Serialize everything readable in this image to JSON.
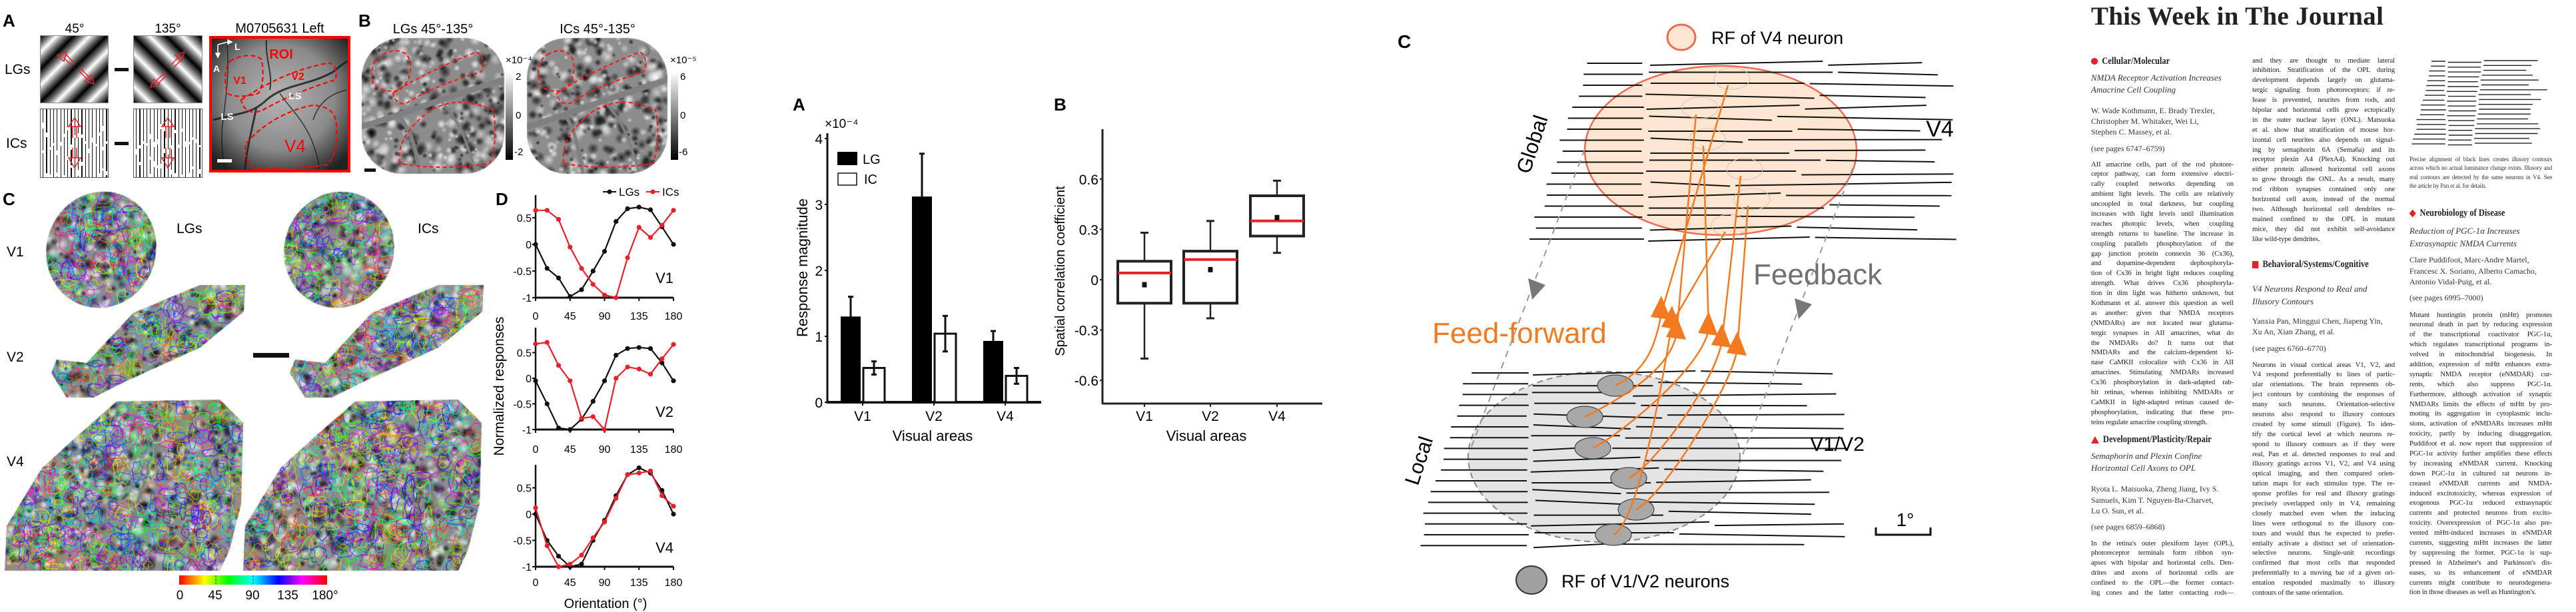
{
  "figure1": {
    "panel_a": {
      "label": "A",
      "col_45": "45°",
      "col_135": "135°",
      "image_title": "M0705631 Left",
      "row_lgs": "LGs",
      "row_ics": "ICs",
      "roi_labels": {
        "roi": "ROI",
        "v1": "V1",
        "v2": "V2",
        "ls_1": "LS",
        "ls_2": "LS",
        "v4": "V4",
        "lateral": "L",
        "anterior": "A"
      }
    },
    "panel_b": {
      "label": "B",
      "title_lgs": "LGs 45°-135°",
      "title_ics": "ICs 45°-135°",
      "cbar_lgs": {
        "exponent": "×10⁻⁴",
        "ticks": [
          "2",
          "0",
          "-2"
        ]
      },
      "cbar_ics": {
        "exponent": "×10⁻⁵",
        "ticks": [
          "6",
          "0",
          "-6"
        ]
      }
    },
    "panel_c": {
      "label": "C",
      "col_lgs": "LGs",
      "col_ics": "ICs",
      "rows": [
        "V1",
        "V2",
        "V4"
      ],
      "colorbar_ticks": [
        "0",
        "45",
        "90",
        "135",
        "180°"
      ]
    },
    "panel_d": {
      "label": "D",
      "ylabel": "Normalized responses",
      "xlabel": "Orientation (°)",
      "legend": [
        "LGs",
        "ICs"
      ],
      "colors": {
        "LGs": "#111111",
        "ICs": "#e8202a"
      }
    }
  },
  "chart_data": [
    {
      "type": "bar",
      "panel": "A",
      "categories": [
        "V1",
        "V2",
        "V4"
      ],
      "series": [
        {
          "name": "LG",
          "values": [
            1.3,
            3.12,
            0.93
          ],
          "error": [
            0.3,
            0.65,
            0.15
          ],
          "color": "#000000"
        },
        {
          "name": "IC",
          "values": [
            0.52,
            1.04,
            0.4
          ],
          "error": [
            0.1,
            0.27,
            0.12
          ],
          "color": "#ffffff"
        }
      ],
      "ylabel": "Response magnitude",
      "y_multiplier": "×10⁻⁴",
      "xlabel": "Visual areas",
      "ylim": [
        0,
        4
      ],
      "yticks": [
        "0",
        "1",
        "2",
        "3",
        "4"
      ],
      "legend": "top-left"
    },
    {
      "type": "box",
      "panel": "B",
      "categories": [
        "V1",
        "V2",
        "V4"
      ],
      "boxes": [
        {
          "whisker_low": -0.47,
          "q1": -0.14,
          "median": 0.04,
          "mean": -0.03,
          "q3": 0.11,
          "whisker_high": 0.28
        },
        {
          "whisker_low": -0.23,
          "q1": -0.14,
          "median": 0.12,
          "mean": 0.06,
          "q3": 0.17,
          "whisker_high": 0.35
        },
        {
          "whisker_low": 0.16,
          "q1": 0.26,
          "median": 0.35,
          "mean": 0.37,
          "q3": 0.5,
          "whisker_high": 0.59
        }
      ],
      "median_color": "#e8202a",
      "ylabel": "Spatial correlation coefficient",
      "xlabel": "Visual areas",
      "ylim": [
        -0.73,
        0.88
      ],
      "yticks": [
        "-0.6",
        "-0.3",
        "0",
        "0.3",
        "0.6"
      ]
    },
    {
      "type": "line",
      "panel": "D",
      "title": "V1",
      "x": [
        0,
        15,
        30,
        45,
        60,
        75,
        90,
        105,
        120,
        135,
        150,
        165,
        180
      ],
      "series": [
        {
          "name": "LGs",
          "values": [
            0,
            -0.45,
            -0.63,
            -0.98,
            -0.85,
            -0.5,
            -0.13,
            0.43,
            0.67,
            0.7,
            0.65,
            0.33,
            0
          ]
        },
        {
          "name": "ICs",
          "values": [
            0.64,
            0.64,
            0.47,
            -0.05,
            -0.45,
            -0.75,
            -0.95,
            -1.0,
            -0.25,
            0.32,
            0.13,
            0.36,
            0.64
          ]
        }
      ],
      "xticks": [
        "0",
        "45",
        "90",
        "135",
        "180"
      ],
      "yticks": [
        "-1",
        "-0.5",
        "0",
        "0.5"
      ],
      "ylim": [
        -1,
        0.92
      ]
    },
    {
      "type": "line",
      "panel": "D",
      "title": "V2",
      "x": [
        0,
        15,
        30,
        45,
        60,
        75,
        90,
        105,
        120,
        135,
        150,
        165,
        180
      ],
      "series": [
        {
          "name": "LGs",
          "values": [
            -0.05,
            -0.5,
            -0.97,
            -1.0,
            -0.8,
            -0.45,
            -0.05,
            0.45,
            0.58,
            0.6,
            0.58,
            0.3,
            -0.05
          ]
        },
        {
          "name": "ICs",
          "values": [
            0.67,
            0.7,
            0.25,
            -0.05,
            -0.78,
            -0.75,
            -1.0,
            0.0,
            0.22,
            0.18,
            0.08,
            0.38,
            0.66
          ]
        }
      ],
      "xticks": [
        "0",
        "45",
        "90",
        "135",
        "180"
      ],
      "yticks": [
        "-1",
        "-0.5",
        "0",
        "0.5"
      ],
      "ylim": [
        -1,
        0.98
      ]
    },
    {
      "type": "line",
      "panel": "D",
      "title": "V4",
      "x": [
        0,
        15,
        30,
        45,
        60,
        75,
        90,
        105,
        120,
        135,
        150,
        165,
        180
      ],
      "series": [
        {
          "name": "LGs",
          "values": [
            0,
            -0.5,
            -0.8,
            -1.0,
            -0.95,
            -0.5,
            -0.12,
            0.35,
            0.75,
            0.88,
            0.78,
            0.45,
            0
          ]
        },
        {
          "name": "ICs",
          "values": [
            0.12,
            -0.6,
            -1.0,
            -0.95,
            -0.78,
            -0.45,
            -0.15,
            0.3,
            0.75,
            0.78,
            0.82,
            0.35,
            0.15
          ]
        }
      ],
      "xticks": [
        "0",
        "45",
        "90",
        "135",
        "180"
      ],
      "yticks": [
        "-1",
        "-0.5",
        "0",
        "0.5"
      ],
      "ylim": [
        -1,
        0.93
      ]
    }
  ],
  "diagram": {
    "label": "C",
    "rf_v4_legend": "RF of V4 neuron",
    "rf_v1v2_legend": "RF of V1/V2 neurons",
    "global": "Global",
    "local": "Local",
    "v4": "V4",
    "v1v2": "V1/V2",
    "feedforward": "Feed-forward",
    "feedback": "Feedback",
    "scale": "1°",
    "colors": {
      "feedforward": "#f47a20",
      "feedback": "#777777",
      "rf_v4_fill": "#fde6d2",
      "rf_v4_stroke": "#ee6a50",
      "rf_v1v2_fill": "#a0a0a0"
    }
  },
  "journal": {
    "title": "This Week in The Journal",
    "col1": {
      "heading": "Cellular/Molecular",
      "title": [
        "NMDA Receptor Activation Increases",
        "Amacrine Cell Coupling"
      ],
      "authors": [
        "W. Wade Kothmann, E. Brady Trexler,",
        "Christopher M. Whitaker, Wei Li,",
        "Stephen C. Massey, et al."
      ],
      "pages": "(see pages 6747–6759)",
      "body": [
        "AII amacrine cells, part of the rod photore-",
        "ceptor pathway, can form extensive electri-",
        "cally coupled networks depending on",
        "ambient light levels. The cells are relatively",
        "uncoupled in total darkness, but coupling",
        "increases with light levels until illumination",
        "reaches photopic levels, when coupling",
        "strength returns to baseline. The increase in",
        "coupling parallels phosphorylation of the",
        "gap junction protein connexin 36 (Cx36),",
        "and dopamine-dependent dephosphoryla-",
        "tion of Cx36 in bright light reduces coupling",
        "strength. What drives Cx36 phosphoryla-",
        "tion in dim light was hitherto unknown, but",
        "Kothmann et al. answer this question as well",
        "as another: given that NMDA receptors",
        "(NMDARs) are not located near glutama-",
        "tergic synapses in AII amacrines, what do",
        "the NMDARs do? It turns out that",
        "NMDARs and the calcium-dependent ki-",
        "nase CaMKII colocalize with Cx36 in AII",
        "amacrines. Stimulating NMDARs increased",
        "Cx36 phosphorylation in dark-adapted rab-",
        "bit retinas, whereas inhibiting NMDARs or",
        "CaMKII in light-adapted retinas caused de-",
        "phosphorylation, indicating that these pro-",
        "teins regulate amacrine coupling strength."
      ],
      "heading2": "Development/Plasticity/Repair",
      "title2": [
        "Semaphorin and Plexin Confine",
        "Horizontal Cell Axons to OPL"
      ],
      "authors2": [
        "Ryota L. Matsuoka, Zheng Jiang, Ivy S.",
        "Samuels, Kim T. Nguyen-Ba-Charvet,",
        "Lu O. Sun, et al."
      ],
      "pages2": "(see pages 6859–6868)",
      "body2": [
        "In the retina's outer plexiform layer (OPL),",
        "photoreceptor terminals form ribbon syn-",
        "apses with bipolar and horizontal cells. Den-",
        "drites and axons of horizontal cells are",
        "confined to the OPL—the former contact-",
        "ing cones and the latter contacting rods—"
      ]
    },
    "col2": {
      "body": [
        "and they are thought to mediate lateral",
        "inhibition. Stratification of the OPL during",
        "development depends largely on glutama-",
        "tergic signaling from photoreceptors: if re-",
        "lease is prevented, neurites from rods, and",
        "bipolar and horizontal cells grow ectopically",
        "in the outer nuclear layer (ONL). Matsuoka",
        "et al. show that stratification of mouse hor-",
        "izontal cell neurites also depends on signal-",
        "ing by semaphorin 6A (Sema6a) and its",
        "receptor plexin A4 (PlexA4). Knocking out",
        "either protein allowed horizontal cell axons",
        "to grow through the ONL. As a result, many",
        "rod ribbon synapses contained only one",
        "horizontal cell axon, instead of the normal",
        "two. Although horizontal cell dendrites re-",
        "mained confined to the OPL in mutant",
        "mice, they did not exhibit self-avoidance",
        "like wild-type dendrites."
      ],
      "heading2": "Behavioral/Systems/Cognitive",
      "title2": [
        "V4 Neurons Respond to Real and",
        "Illusory Contours"
      ],
      "authors2": [
        "Yanxia Pan, Minggui Chen, Jiapeng Yin,",
        "Xu An, Xian Zhang, et al."
      ],
      "pages2": "(see pages 6760–6770)",
      "body2": [
        "Neurons in visual cortical areas V1, V2, and",
        "V4 respond preferentially to lines of partic-",
        "ular orientations. The brain represents ob-",
        "ject contours by combining the responses of",
        "many such neurons. Orientation-selective",
        "neurons also respond to illusory contours",
        "created by some stimuli (Figure). To iden-",
        "tify the cortical level at which neurons re-",
        "spond to illusory contours as if they were",
        "real, Pan et al. detected responses to real and",
        "illusory gratings across V1, V2, and V4 using",
        "optical imaging, and then compared orien-",
        "tation maps for each stimulus type. The re-",
        "sponse profiles for real and illusory gratings",
        "precisely overlapped only in V4, remaining",
        "closely matched even when the inducing",
        "lines were orthogonal to the illusory con-",
        "tours and would thus be expected to prefer-",
        "entially activate a distinct set of orientation-",
        "selective neurons. Single-unit recordings",
        "confirmed that most cells that responded",
        "preferentially to a moving bar of a given ori-",
        "entation responded maximally to illusory",
        "contours of the same orientation."
      ]
    },
    "col3": {
      "caption": [
        "Precise alignment of black lines creates illusory contours",
        "across which no actual luminance change exists. Illusory and",
        "real contours are detected by the same neurons in V4. See",
        "the article by Pan et al. for details."
      ],
      "heading": "Neurobiology of Disease",
      "title": [
        "Reduction of PGC-1α Increases",
        "Extrasynaptic NMDA Currents"
      ],
      "authors": [
        "Clare Puddifoot, Marc-Andre Martel,",
        "Francesc X. Soriano, Alberto Camacho,",
        "Antonio Vidal-Puig, et al."
      ],
      "pages": "(see pages 6995–7000)",
      "body": [
        "Mutant huntingtin protein (mHtt) promotes",
        "neuronal death in part by reducing expression",
        "of the transcriptional coactivator PGC-1α,",
        "which regulates transcriptional programs in-",
        "volved in mitochondrial biogenesis. In",
        "addition, expression of mHtt enhances extra-",
        "synaptic NMDA receptor (eNMDAR) cur-",
        "rents, which also suppress PGC-1α.",
        "Furthermore, although activation of synaptic",
        "NMDARs limits the effects of mHtt by pro-",
        "moting its aggregation in cytoplasmic inclu-",
        "sions, activation of eNMDARs increases mHtt",
        "toxicity, partly by inducing disaggregation.",
        "Puddifoot et al. now report that suppression of",
        "PGC-1α activity further amplifies these effects",
        "by increasing eNMDAR current. Knocking",
        "down PGC-1α in cultured rat neurons in-",
        "creased eNMDAR currents and NMDA-",
        "induced excitotoxicity, whereas expression of",
        "exogenous PGC-1α reduced extrasynaptic",
        "currents and protected neurons from excito-",
        "toxicity. Overexpression of PGC-1α also pre-",
        "vented mHtt-induced increases in eNMDAR",
        "currents, suggesting mHtt increases the latter",
        "by suppressing the former. PGC-1α is sup-",
        "pressed in Alzheimer's and Parkinson's dis-",
        "eases, so its enhancement of eNMDAR",
        "currents might contribute to neurodegenera-",
        "tion in those diseases as well as Huntington's."
      ]
    },
    "bullet_color": "#e8202a",
    "bullet_icons": [
      "circle",
      "triangle",
      "square",
      "diamond"
    ]
  }
}
